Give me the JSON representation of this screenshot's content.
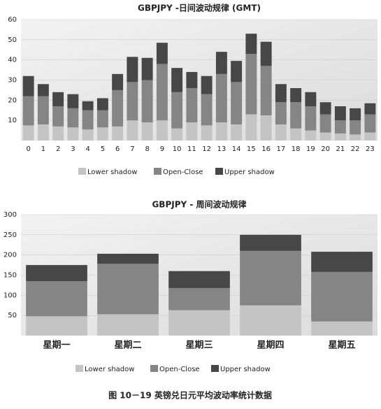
{
  "caption": "图 10－19  英镑兑日元平均波动率统计数据",
  "chart_data": [
    {
      "type": "bar",
      "stacked": true,
      "title": "GBPJPY -日间波动规律 (GMT)",
      "categories": [
        "0",
        "1",
        "2",
        "3",
        "4",
        "5",
        "6",
        "7",
        "8",
        "9",
        "10",
        "11",
        "12",
        "13",
        "14",
        "15",
        "16",
        "17",
        "18",
        "19",
        "20",
        "21",
        "22",
        "23"
      ],
      "series": [
        {
          "name": "Lower shadow",
          "color": "#c4c4c4",
          "values": [
            7.5,
            8,
            7,
            6.5,
            5.5,
            6.5,
            7,
            10,
            9,
            10,
            6,
            9,
            7.5,
            9,
            8,
            13,
            12.5,
            8,
            6,
            5,
            4,
            3.5,
            3,
            4
          ]
        },
        {
          "name": "Open-Close",
          "color": "#858585",
          "values": [
            14.5,
            14,
            10,
            9.5,
            9.5,
            8.5,
            18,
            19,
            21,
            28,
            18,
            17,
            15.5,
            24,
            21,
            30,
            24.5,
            11,
            13,
            12,
            9,
            6.5,
            7,
            9
          ]
        },
        {
          "name": "Upper shadow",
          "color": "#474747",
          "values": [
            10,
            6,
            7,
            7,
            4.5,
            6,
            8,
            12.5,
            11,
            10.5,
            12,
            8,
            9,
            11,
            10.5,
            10,
            12,
            9,
            7,
            7,
            6,
            7,
            6,
            5.5
          ]
        }
      ],
      "ylim": [
        0,
        60
      ],
      "yticks": [
        10,
        20,
        30,
        40,
        50,
        60
      ],
      "grid": true
    },
    {
      "type": "bar",
      "stacked": true,
      "title": "GBPJPY - 周间波动规律",
      "categories": [
        "星期一",
        "星期二",
        "星期三",
        "星期四",
        "星期五"
      ],
      "series": [
        {
          "name": "Lower shadow",
          "color": "#c4c4c4",
          "values": [
            48,
            53,
            63,
            75,
            35
          ]
        },
        {
          "name": "Open-Close",
          "color": "#858585",
          "values": [
            87,
            125,
            55,
            135,
            123
          ]
        },
        {
          "name": "Upper shadow",
          "color": "#474747",
          "values": [
            40,
            25,
            42,
            40,
            50
          ]
        }
      ],
      "ylim": [
        0,
        300
      ],
      "yticks": [
        50,
        100,
        150,
        200,
        250,
        300
      ],
      "grid": true
    }
  ]
}
